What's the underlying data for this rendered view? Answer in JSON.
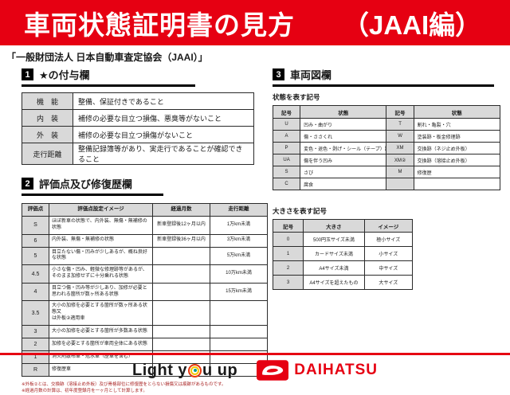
{
  "banner": {
    "title": "車両状態証明書の見方",
    "edition": "（JAAI編）"
  },
  "subtitle": "「一般財団法人 日本自動車査定協会（JAAI）」",
  "section1": {
    "number": "1",
    "title": "★の付与欄",
    "rows": [
      [
        "機　能",
        "整備、保証付きであること"
      ],
      [
        "内　装",
        "補修の必要な目立つ損傷、悪臭等がないこと"
      ],
      [
        "外　装",
        "補修の必要な目立つ損傷がないこと"
      ],
      [
        "走行距離",
        "整備記録簿等があり、実走行であることが確認できること"
      ]
    ]
  },
  "section2": {
    "number": "2",
    "title": "評価点及び修復歴欄",
    "headers": [
      "評価点",
      "評価点設定イメージ",
      "経過月数",
      "走行距離"
    ],
    "rows": [
      [
        "S",
        "ほぼ新車の状態で、内外装、無傷・無補修の状態",
        "新車登録後12ヶ月以内",
        "1万km未満"
      ],
      [
        "6",
        "内外装、無傷・無補修の状態",
        "新車登録後36ヶ月以内",
        "3万km未満"
      ],
      [
        "5",
        "目立たない傷・凹みが少しあるが、概ね良好な状態",
        "",
        "5万km未満"
      ],
      [
        "4.5",
        "小さな傷・凹み、軽微な修理跡等があるが、\nそのまま加修せずに十分乗れる状態",
        "",
        "10万km未満"
      ],
      [
        "4",
        "目立つ傷・凹み等が少しあり、加修が必要と\n思われる箇所が数ヶ所ある状態",
        "",
        "15万km未満"
      ],
      [
        "3.5",
        "大小の加修を必要とする箇所が数ヶ所ある状態又\nは外板②適用車",
        "",
        ""
      ],
      [
        "3",
        "大小の加修を必要とする箇所が多数ある状態",
        "",
        ""
      ],
      [
        "2",
        "加修を必要とする箇所が車両全体にある状態",
        "",
        ""
      ],
      [
        "1",
        "消火剤散布車・冠水車（歴車を含む）",
        "",
        ""
      ],
      [
        "R",
        "修復歴車",
        "",
        ""
      ]
    ],
    "notes": [
      "※外板②とは、交換跡（溶接止め外板）及び骨格部位に修復歴をとらない損傷又は痕跡があるものです。",
      "※経過月数の計算は、初年度登録月を一ヶ月として計算します。"
    ]
  },
  "section3": {
    "number": "3",
    "title": "車両図欄",
    "symbols": {
      "label": "状態を表す記号",
      "headers": [
        "記号",
        "状態",
        "記号",
        "状態"
      ],
      "rows": [
        [
          "U",
          "凹み・曲がり",
          "T",
          "割れ・亀裂・穴"
        ],
        [
          "A",
          "傷・ささくれ",
          "W",
          "塗装跡・板金修理跡"
        ],
        [
          "P",
          "変色・退色・剥げ・シール（テープ）跡",
          "XM",
          "交換跡（ネジ止め外板）"
        ],
        [
          "UA",
          "傷を伴う凹み",
          "XM②",
          "交換跡（溶接止め外板）"
        ],
        [
          "S",
          "さび",
          "M",
          "修復歴"
        ],
        [
          "C",
          "腐食",
          "",
          ""
        ]
      ]
    },
    "sizes": {
      "label": "大きさを表す記号",
      "headers": [
        "記号",
        "大きさ",
        "イメージ"
      ],
      "rows": [
        [
          "0",
          "500円玉サイズ未満",
          "極小サイズ"
        ],
        [
          "1",
          "カードサイズ未満",
          "小サイズ"
        ],
        [
          "2",
          "A4サイズ未満",
          "中サイズ"
        ],
        [
          "3",
          "A4サイズを超えたもの",
          "大サイズ"
        ]
      ]
    }
  },
  "footer": {
    "slogan_part1": "Light y",
    "slogan_part2": "u up",
    "brand": "DAIHATSU"
  },
  "colors": {
    "brand_red": "#e60012",
    "cell_gray": "#d9d9d9",
    "note_red": "#a82222"
  }
}
